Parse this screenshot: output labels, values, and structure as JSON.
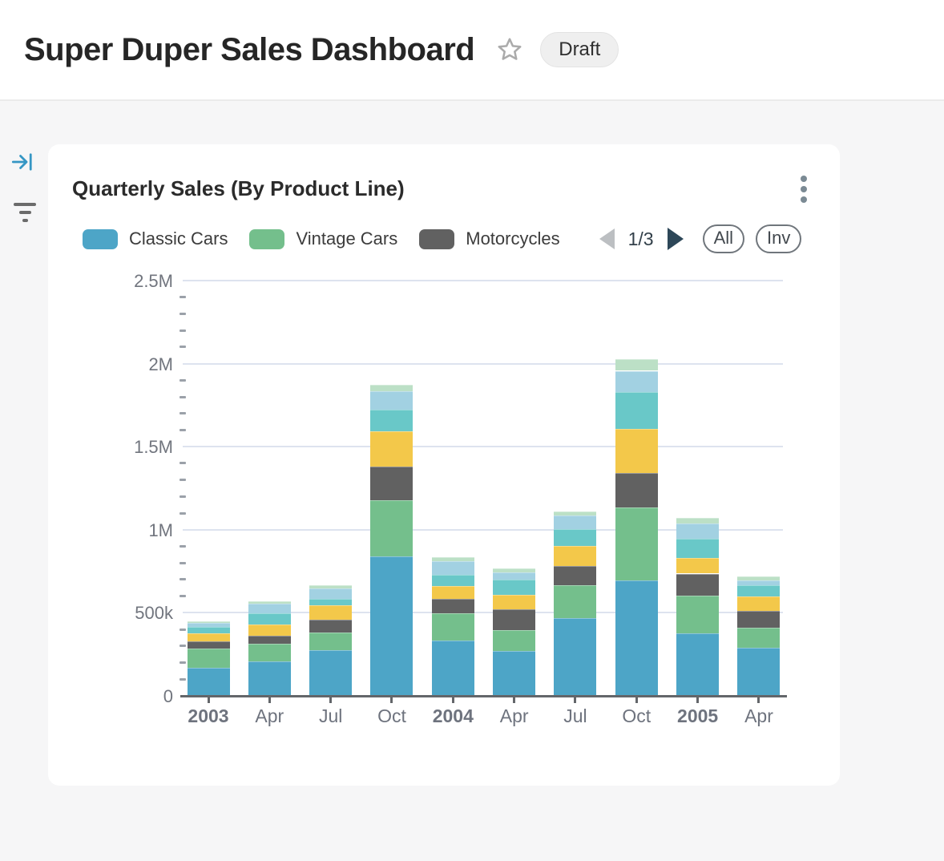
{
  "page": {
    "title": "Super Duper Sales Dashboard",
    "status_badge": "Draft"
  },
  "icons": {
    "favorite": "star-outline",
    "card_menu": "kebab-vertical-dots",
    "side_panel": "arrow-to-bar",
    "side_filter": "filter-funnel",
    "legend_prev": "triangle-left",
    "legend_next": "triangle-right"
  },
  "colors": {
    "page_bg": "#f6f6f7",
    "card_bg": "#ffffff",
    "accent_blue": "#3596c4",
    "grid": "#dde3ef",
    "axis": "#63666a",
    "tick_label": "#71757e",
    "pager_next": "#2d4758",
    "pager_prev_disabled": "#bcbfc2"
  },
  "card": {
    "title": "Quarterly Sales (By Product Line)",
    "legend": {
      "items": [
        {
          "label": "Classic Cars",
          "color": "#4DA5C7"
        },
        {
          "label": "Vintage Cars",
          "color": "#74BF8C"
        },
        {
          "label": "Motorcycles",
          "color": "#616161"
        }
      ],
      "pagination": "1/3",
      "buttons": {
        "all": "All",
        "invert": "Inv"
      }
    }
  },
  "chart_data": {
    "type": "bar",
    "stacked": true,
    "title": "Quarterly Sales (By Product Line)",
    "legend_position": "top",
    "legend_pages": "1/3",
    "grid": "horizontal major gridlines, 4 minor axis ticks per interval",
    "x_categories": [
      "2003",
      "Apr",
      "Jul",
      "Oct",
      "2004",
      "Apr",
      "Jul",
      "Oct",
      "2005",
      "Apr"
    ],
    "x_bold": [
      true,
      false,
      false,
      false,
      true,
      false,
      false,
      false,
      true,
      false
    ],
    "values_unit": "thousands",
    "ylim_thousands": [
      0,
      2500
    ],
    "y_tick_labels": [
      "0",
      "500k",
      "1M",
      "1.5M",
      "2M",
      "2.5M"
    ],
    "y_tick_values_thousands": [
      0,
      500,
      1000,
      1500,
      2000,
      2500
    ],
    "series": [
      {
        "name": "Classic Cars",
        "color": "#4DA5C7",
        "values": [
          170,
          209,
          275,
          839,
          334,
          269,
          466,
          696,
          375,
          291
        ]
      },
      {
        "name": "Vintage Cars",
        "color": "#74BF8C",
        "values": [
          115,
          107,
          107,
          339,
          164,
          129,
          201,
          440,
          227,
          117
        ]
      },
      {
        "name": "Motorcycles",
        "color": "#616161",
        "values": [
          44,
          44,
          77,
          202,
          88,
          125,
          116,
          207,
          134,
          102
        ]
      },
      {
        "name": "Unlabeled (yellow)",
        "color": "#F3C84A",
        "values": [
          49,
          68,
          87,
          215,
          76,
          84,
          121,
          262,
          92,
          89
        ]
      },
      {
        "name": "Unlabeled (teal)",
        "color": "#69C8C8",
        "values": [
          39,
          68,
          40,
          126,
          69,
          93,
          101,
          223,
          118,
          65
        ]
      },
      {
        "name": "Unlabeled (light blue)",
        "color": "#A2D1E2",
        "values": [
          24,
          58,
          62,
          113,
          80,
          45,
          80,
          129,
          92,
          32
        ]
      },
      {
        "name": "Unlabeled (light green)",
        "color": "#BCE0C6",
        "values": [
          10,
          15,
          19,
          39,
          24,
          24,
          24,
          68,
          32,
          23
        ]
      }
    ],
    "totals_thousands": [
      451,
      569,
      667,
      1873,
      835,
      769,
      1109,
      2025,
      1070,
      719
    ]
  }
}
